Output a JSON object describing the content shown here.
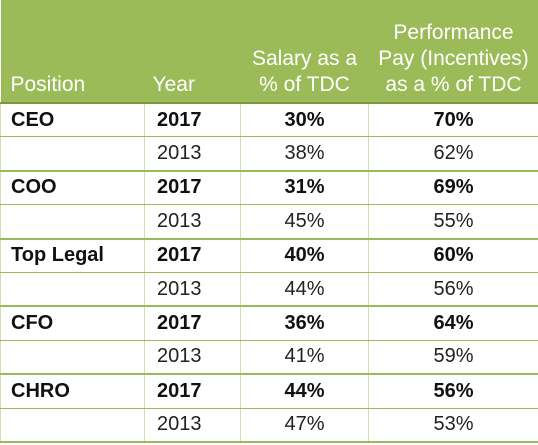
{
  "header": {
    "position": "Position",
    "year": "Year",
    "salary_line1": "Salary as a",
    "salary_line2": "% of TDC",
    "performance_line1": "Performance",
    "performance_line2": "Pay (Incentives)",
    "performance_line3": "as a % of TDC"
  },
  "rows": [
    {
      "position": "CEO",
      "year": "2017",
      "salary": "30%",
      "performance": "70%"
    },
    {
      "position": "",
      "year": "2013",
      "salary": "38%",
      "performance": "62%"
    },
    {
      "position": "COO",
      "year": "2017",
      "salary": "31%",
      "performance": "69%"
    },
    {
      "position": "",
      "year": "2013",
      "salary": "45%",
      "performance": "55%"
    },
    {
      "position": "Top Legal",
      "year": "2017",
      "salary": "40%",
      "performance": "60%"
    },
    {
      "position": "",
      "year": "2013",
      "salary": "44%",
      "performance": "56%"
    },
    {
      "position": "CFO",
      "year": "2017",
      "salary": "36%",
      "performance": "64%"
    },
    {
      "position": "",
      "year": "2013",
      "salary": "41%",
      "performance": "59%"
    },
    {
      "position": "CHRO",
      "year": "2017",
      "salary": "44%",
      "performance": "56%"
    },
    {
      "position": "",
      "year": "2013",
      "salary": "47%",
      "performance": "53%"
    }
  ],
  "colors": {
    "header_background": "#9bbb59",
    "header_text": "#ffffff",
    "rule": "#9bbb59"
  }
}
